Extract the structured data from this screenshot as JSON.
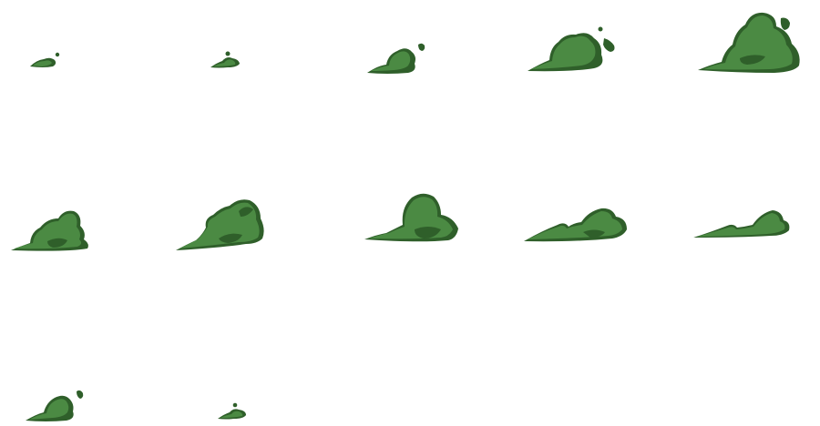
{
  "sprite_sheet": {
    "subject": "smoke-puff-animation",
    "colors": {
      "shadow": "#2f5f2a",
      "body": "#4b8a43",
      "background": "#ffffff"
    },
    "columns": 5,
    "rows": 3,
    "frame_count": 12
  }
}
